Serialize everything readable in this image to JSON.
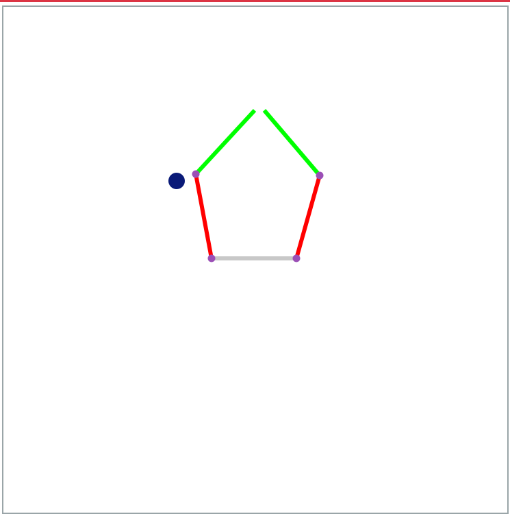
{
  "colors": {
    "top_bar": "#dc3545",
    "frame_border": "#9aa5a8",
    "background": "#ffffff",
    "edge_green": "#00ff00",
    "edge_red": "#ff0000",
    "edge_gray": "#c8c8c8",
    "node": "#9b4fb6",
    "player": "#0a1a78"
  },
  "puzzle": {
    "shape": "pentagon",
    "nodes": [
      {
        "id": "node-top-left-gap"
      },
      {
        "id": "node-top-right-gap"
      },
      {
        "id": "node-right"
      },
      {
        "id": "node-bottom-right"
      },
      {
        "id": "node-bottom-left"
      },
      {
        "id": "node-left"
      }
    ],
    "edges": [
      {
        "id": "edge-top-left",
        "state": "green"
      },
      {
        "id": "edge-top-right",
        "state": "green"
      },
      {
        "id": "edge-right",
        "state": "red"
      },
      {
        "id": "edge-bottom",
        "state": "gray"
      },
      {
        "id": "edge-left",
        "state": "red"
      }
    ],
    "player": {
      "id": "player-token",
      "at": "node-left"
    }
  }
}
